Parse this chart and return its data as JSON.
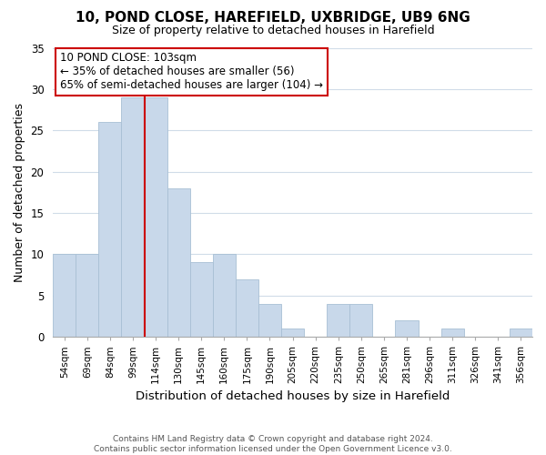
{
  "title": "10, POND CLOSE, HAREFIELD, UXBRIDGE, UB9 6NG",
  "subtitle": "Size of property relative to detached houses in Harefield",
  "xlabel": "Distribution of detached houses by size in Harefield",
  "ylabel": "Number of detached properties",
  "bar_color": "#c8d8ea",
  "bar_edge_color": "#a8bfd4",
  "vline_color": "#cc0000",
  "vline_idx": 4,
  "categories": [
    "54sqm",
    "69sqm",
    "84sqm",
    "99sqm",
    "114sqm",
    "130sqm",
    "145sqm",
    "160sqm",
    "175sqm",
    "190sqm",
    "205sqm",
    "220sqm",
    "235sqm",
    "250sqm",
    "265sqm",
    "281sqm",
    "296sqm",
    "311sqm",
    "326sqm",
    "341sqm",
    "356sqm"
  ],
  "values": [
    10,
    10,
    26,
    29,
    29,
    18,
    9,
    10,
    7,
    4,
    1,
    0,
    4,
    4,
    0,
    2,
    0,
    1,
    0,
    0,
    1
  ],
  "ylim": [
    0,
    35
  ],
  "yticks": [
    0,
    5,
    10,
    15,
    20,
    25,
    30,
    35
  ],
  "annotation_title": "10 POND CLOSE: 103sqm",
  "annotation_line1": "← 35% of detached houses are smaller (56)",
  "annotation_line2": "65% of semi-detached houses are larger (104) →",
  "annotation_box_color": "#ffffff",
  "annotation_box_edge_color": "#cc0000",
  "footer1": "Contains HM Land Registry data © Crown copyright and database right 2024.",
  "footer2": "Contains public sector information licensed under the Open Government Licence v3.0.",
  "background_color": "#ffffff",
  "grid_color": "#d0dce8"
}
